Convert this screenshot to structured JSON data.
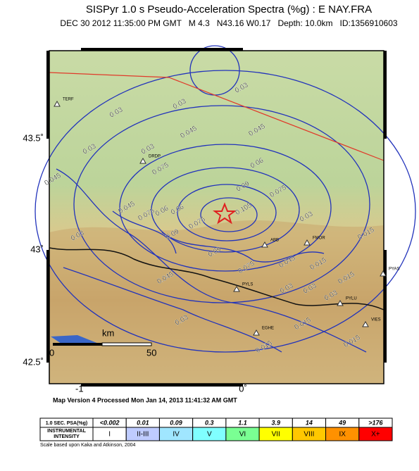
{
  "header": {
    "title": "SISPyr 1.0 s Pseudo-Acceleration Spectra (%g) : E NAY.FRA",
    "subtitle": "DEC 30 2012 11:35:00 PM GMT   M 4.3   N43.16 W0.17   Depth: 10.0km   ID:1356910603"
  },
  "map": {
    "lat_labels": [
      "43.5˚",
      "43˚",
      "42.5˚"
    ],
    "lon_labels": [
      "-1˚",
      "0˚"
    ],
    "contour_labels": [
      "0.03",
      "0.03",
      "0.03",
      "0.03",
      "0.03",
      "0.045",
      "0.045",
      "0.06",
      "0.045",
      "0.075",
      "0.075",
      "0.09",
      "0.06",
      "0.06",
      "0.105",
      "0.075",
      "0.09",
      "0.09",
      "0.075",
      "0.075",
      "0.03",
      "0.015",
      "0.045",
      "0.015",
      "0.045",
      "0.03",
      "0.03",
      "0.03",
      "0.03",
      "0.015",
      "0.015",
      "0.015",
      "0.015",
      "0.045",
      "0.03"
    ],
    "stations": [
      "TERF",
      "DRDP",
      "PYLS",
      "PYLU",
      "VIES",
      "PYAS",
      "FMOR",
      "ABB",
      "EGHE"
    ],
    "scale": {
      "unit": "km",
      "start": "0",
      "end": "50"
    }
  },
  "footer": {
    "version": "Map Version 4 Processed Mon Jan 14, 2013 11:41:32 AM GMT",
    "note": "Scale based upon Kaka and Atkinson, 2004"
  },
  "legend": {
    "psa_header": "1.0 SEC. PSA(%g)",
    "intensity_header": "INSTRUMENTAL INTENSITY",
    "psa": [
      "<0.002",
      "0.01",
      "0.09",
      "0.3",
      "1.1",
      "3.9",
      "14",
      "49",
      ">176"
    ],
    "intensity": [
      "I",
      "II-III",
      "IV",
      "V",
      "VI",
      "VII",
      "VIII",
      "IX",
      "X+"
    ],
    "colors": [
      "#ffffff",
      "#bfccff",
      "#a0e6ff",
      "#80ffff",
      "#7aff93",
      "#ffff00",
      "#ffc800",
      "#ff9100",
      "#ff0000"
    ]
  }
}
